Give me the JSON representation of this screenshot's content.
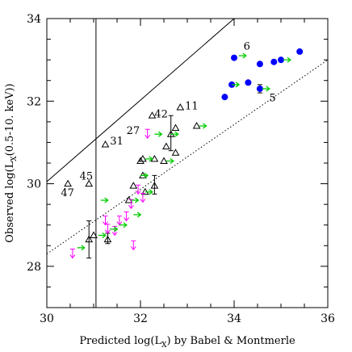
{
  "chart_data": {
    "type": "scatter",
    "xlabel": "Predicted log(L_X) by Babel & Montmerle",
    "xlabel_pre": "Predicted log(L",
    "xlabel_sub": "X",
    "xlabel_post": ") by Babel & Montmerle",
    "ylabel": "Observed log(L_X(0.5-10. keV))",
    "ylabel_pre": "Observed log(L",
    "ylabel_sub": "X",
    "ylabel_post": "(0.5-10. keV))",
    "xlim": [
      30,
      36
    ],
    "ylim": [
      27,
      34
    ],
    "x_ticks": [
      30,
      32,
      34,
      36
    ],
    "y_ticks": [
      28,
      30,
      32,
      34
    ],
    "x_tick_labels": [
      "30",
      "32",
      "34",
      "36"
    ],
    "y_tick_labels": [
      "28",
      "30",
      "32",
      "34"
    ],
    "reference_lines": [
      {
        "style": "solid",
        "x": [
          30,
          34
        ],
        "y": [
          30.05,
          34.0
        ]
      },
      {
        "style": "dotted",
        "x": [
          30,
          36
        ],
        "y": [
          28.3,
          33.0
        ]
      },
      {
        "style": "solid",
        "x": [
          31.05,
          31.05
        ],
        "y": [
          27,
          34
        ]
      }
    ],
    "series": [
      {
        "marker": "filled-circle",
        "color": "#0000ff",
        "points": [
          {
            "x": 33.8,
            "y": 32.1
          },
          {
            "x": 33.95,
            "y": 32.4
          },
          {
            "x": 34.3,
            "y": 32.45
          },
          {
            "x": 34.55,
            "y": 32.3
          },
          {
            "x": 34.55,
            "y": 32.9
          },
          {
            "x": 34.85,
            "y": 32.95
          },
          {
            "x": 35.0,
            "y": 33.0
          },
          {
            "x": 35.4,
            "y": 33.2
          },
          {
            "x": 34.0,
            "y": 33.05
          }
        ]
      },
      {
        "marker": "open-triangle",
        "color": "#000000",
        "points": [
          {
            "x": 30.45,
            "y": 30.0
          },
          {
            "x": 30.9,
            "y": 30.0
          },
          {
            "x": 31.25,
            "y": 30.95
          },
          {
            "x": 32.25,
            "y": 31.65
          },
          {
            "x": 32.85,
            "y": 31.85
          },
          {
            "x": 32.75,
            "y": 31.35
          },
          {
            "x": 32.75,
            "y": 30.75
          },
          {
            "x": 32.55,
            "y": 30.9
          },
          {
            "x": 32.05,
            "y": 30.6
          },
          {
            "x": 32.3,
            "y": 30.6
          },
          {
            "x": 32.5,
            "y": 30.55
          },
          {
            "x": 32.05,
            "y": 30.2
          },
          {
            "x": 32.1,
            "y": 29.8
          },
          {
            "x": 31.75,
            "y": 29.6
          },
          {
            "x": 31.0,
            "y": 28.75
          },
          {
            "x": 31.3,
            "y": 28.65
          },
          {
            "x": 32.0,
            "y": 30.55
          },
          {
            "x": 33.2,
            "y": 31.4
          },
          {
            "x": 32.65,
            "y": 31.2
          },
          {
            "x": 31.85,
            "y": 29.95
          },
          {
            "x": 32.3,
            "y": 29.95
          },
          {
            "x": 30.9,
            "y": 28.65
          }
        ]
      },
      {
        "marker": "arrow-down-bar",
        "color": "#ff00ff",
        "points": [
          {
            "x": 32.15,
            "y": 31.2
          },
          {
            "x": 31.95,
            "y": 29.85
          },
          {
            "x": 31.8,
            "y": 29.5
          },
          {
            "x": 31.55,
            "y": 29.1
          },
          {
            "x": 31.25,
            "y": 29.1
          },
          {
            "x": 31.45,
            "y": 28.85
          },
          {
            "x": 30.55,
            "y": 28.3
          },
          {
            "x": 31.85,
            "y": 28.5
          },
          {
            "x": 31.7,
            "y": 29.2
          },
          {
            "x": 32.05,
            "y": 29.65
          },
          {
            "x": 31.3,
            "y": 28.9
          }
        ]
      }
    ],
    "green_arrows": [
      {
        "x": 34.1,
        "y": 33.1
      },
      {
        "x": 33.95,
        "y": 32.4
      },
      {
        "x": 34.6,
        "y": 32.3
      },
      {
        "x": 35.05,
        "y": 33.0
      },
      {
        "x": 32.3,
        "y": 31.2
      },
      {
        "x": 32.65,
        "y": 31.2
      },
      {
        "x": 33.25,
        "y": 31.4
      },
      {
        "x": 32.1,
        "y": 30.6
      },
      {
        "x": 32.55,
        "y": 30.55
      },
      {
        "x": 32.1,
        "y": 29.8
      },
      {
        "x": 31.8,
        "y": 29.6
      },
      {
        "x": 31.1,
        "y": 28.75
      },
      {
        "x": 31.35,
        "y": 28.9
      },
      {
        "x": 31.85,
        "y": 29.25
      },
      {
        "x": 31.15,
        "y": 29.6
      },
      {
        "x": 30.65,
        "y": 28.45
      },
      {
        "x": 32.0,
        "y": 30.2
      },
      {
        "x": 31.55,
        "y": 29.0
      }
    ],
    "error_bars": [
      {
        "x": 30.9,
        "y": 28.65,
        "y_low": 28.2,
        "y_high": 29.1
      },
      {
        "x": 31.3,
        "y": 28.65,
        "y_low": 28.55,
        "y_high": 28.8
      },
      {
        "x": 32.3,
        "y": 29.95,
        "y_low": 29.75,
        "y_high": 30.2
      },
      {
        "x": 32.65,
        "y": 31.2,
        "y_low": 30.8,
        "y_high": 31.65
      },
      {
        "x": 34.55,
        "y": 32.3,
        "y_low": 32.2,
        "y_high": 32.4
      }
    ],
    "annotations": [
      {
        "text": "6",
        "x": 34.2,
        "y": 33.25
      },
      {
        "text": "5",
        "x": 34.75,
        "y": 32.0
      },
      {
        "text": "11",
        "x": 32.95,
        "y": 31.8
      },
      {
        "text": "42",
        "x": 32.3,
        "y": 31.6
      },
      {
        "text": "31",
        "x": 31.35,
        "y": 30.95
      },
      {
        "text": "27",
        "x": 31.7,
        "y": 31.2
      },
      {
        "text": "45",
        "x": 30.7,
        "y": 30.1
      },
      {
        "text": "47",
        "x": 30.3,
        "y": 29.7
      }
    ]
  }
}
